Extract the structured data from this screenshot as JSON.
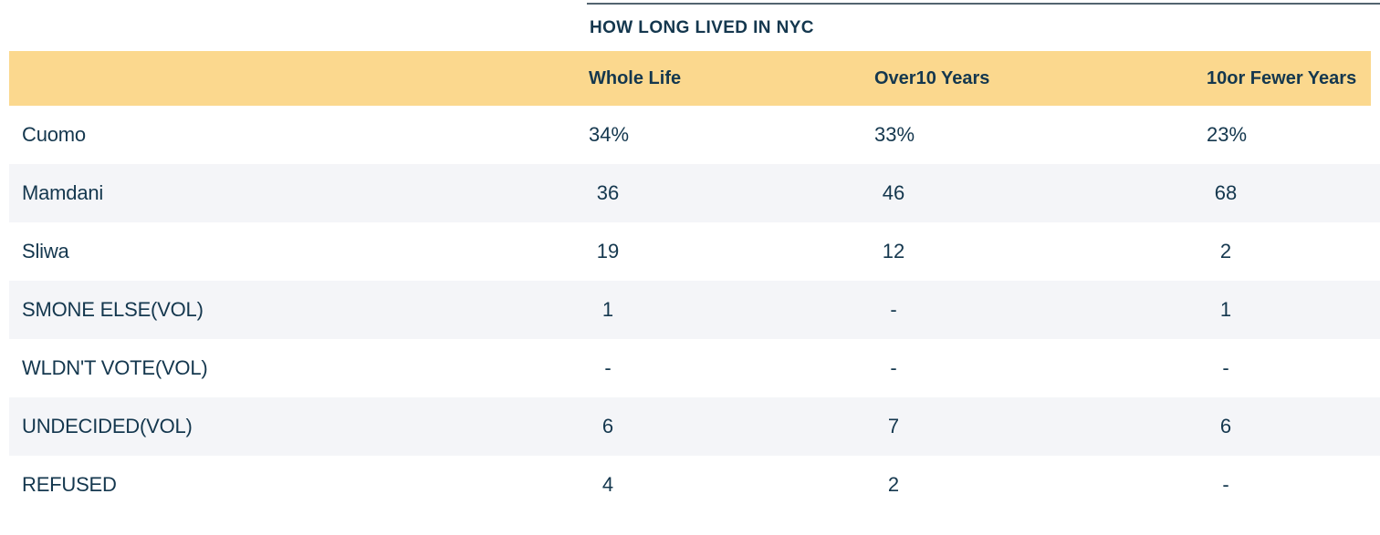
{
  "chart_data": {
    "type": "table",
    "title": "HOW LONG LIVED IN NYC",
    "columns": [
      "Whole Life",
      "Over10 Years",
      "10or Fewer Years"
    ],
    "rows": [
      {
        "label": "Cuomo",
        "values": [
          "34%",
          "33%",
          "23%"
        ]
      },
      {
        "label": "Mamdani",
        "values": [
          "36",
          "46",
          "68"
        ]
      },
      {
        "label": "Sliwa",
        "values": [
          "19",
          "12",
          "2"
        ]
      },
      {
        "label": "SMONE ELSE(VOL)",
        "values": [
          "1",
          "-",
          "1"
        ]
      },
      {
        "label": "WLDN'T VOTE(VOL)",
        "values": [
          "-",
          "-",
          "-"
        ]
      },
      {
        "label": "UNDECIDED(VOL)",
        "values": [
          "6",
          "7",
          "6"
        ]
      },
      {
        "label": "REFUSED",
        "values": [
          "4",
          "2",
          "-"
        ]
      }
    ],
    "layout_hints": {
      "striped_rows": [
        1,
        3,
        5
      ],
      "header_alignment": "left",
      "value_alignment": "center"
    }
  },
  "colors": {
    "header_band": "#fbd88e",
    "row_stripe": "#f4f5f8",
    "text_navy": "#14374e",
    "top_rule": "#536470",
    "background": "#ffffff"
  }
}
